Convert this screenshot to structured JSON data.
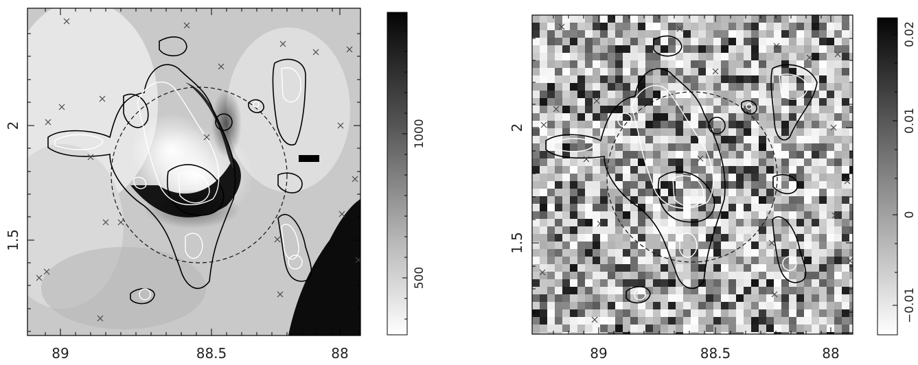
{
  "panels": [
    {
      "id": "left",
      "x_ticks": [
        "89",
        "88.5",
        "88"
      ],
      "y_ticks": [
        "2",
        "1.5"
      ],
      "colorbar_ticks": [
        "1000",
        "500"
      ],
      "description_colors": {
        "map_bg": "#cfcfcf",
        "dark": "#111111"
      }
    },
    {
      "id": "right",
      "x_ticks": [
        "89",
        "88.5",
        "88"
      ],
      "y_ticks": [
        "2",
        "1.5"
      ],
      "colorbar_ticks": [
        "0.02",
        "0.01",
        "0",
        "−0.01"
      ]
    }
  ],
  "chart_data": [
    {
      "type": "heatmap",
      "x_ticks": [
        89,
        88.5,
        88
      ],
      "y_ticks": [
        2,
        1.5
      ],
      "xlim": [
        89.25,
        87.9
      ],
      "ylim": [
        1.25,
        2.4
      ],
      "colorbar_ticks": [
        1000,
        500
      ],
      "colorbar_range": [
        300,
        1500
      ],
      "circle_center": [
        88.6,
        1.79
      ],
      "circle_radius_deg": 0.37
    },
    {
      "type": "heatmap",
      "x_ticks": [
        89,
        88.5,
        88
      ],
      "y_ticks": [
        2,
        1.5
      ],
      "xlim": [
        89.25,
        87.9
      ],
      "ylim": [
        1.25,
        2.4
      ],
      "colorbar_ticks": [
        0.02,
        0.01,
        0,
        -0.01
      ],
      "colorbar_range": [
        -0.015,
        0.021
      ],
      "circle_center": [
        88.6,
        1.79
      ],
      "circle_radius_deg": 0.37
    }
  ]
}
